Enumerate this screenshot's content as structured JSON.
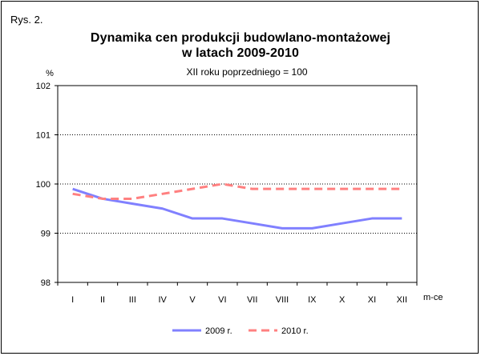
{
  "figure": {
    "label": "Rys. 2.",
    "title_line_1": "Dynamika cen produkcji budowlano-montażowej",
    "title_line_2": "w latach 2009-2010",
    "subtitle": "XII roku poprzedniego = 100"
  },
  "chart_data": {
    "type": "line",
    "ylabel": "%",
    "xlabel": "m-ce",
    "categories": [
      "I",
      "II",
      "III",
      "IV",
      "V",
      "VI",
      "VII",
      "VIII",
      "IX",
      "X",
      "XI",
      "XII"
    ],
    "ylim": [
      98,
      102
    ],
    "yticks": [
      98,
      99,
      100,
      101,
      102
    ],
    "grid": true,
    "legend_position": "bottom",
    "series": [
      {
        "name": "2009 r.",
        "style": "solid",
        "color": "#8080ff",
        "values": [
          99.9,
          99.7,
          99.6,
          99.5,
          99.3,
          99.3,
          99.2,
          99.1,
          99.1,
          99.2,
          99.3,
          99.3
        ]
      },
      {
        "name": "2010 r.",
        "style": "dashed",
        "color": "#ff8080",
        "values": [
          99.8,
          99.7,
          99.7,
          99.8,
          99.9,
          100.0,
          99.9,
          99.9,
          99.9,
          99.9,
          99.9,
          99.9
        ]
      }
    ]
  }
}
